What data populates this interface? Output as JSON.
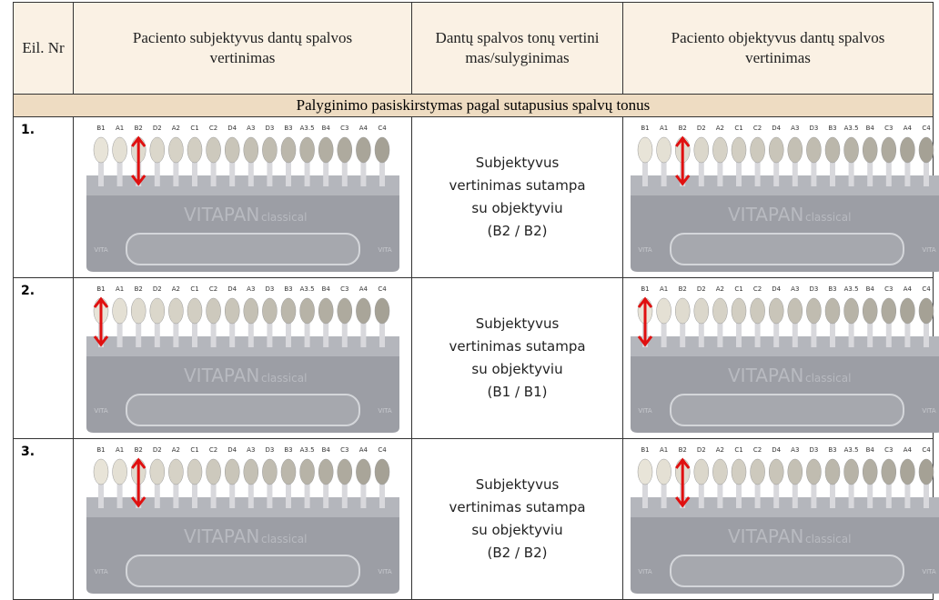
{
  "table": {
    "header": [
      "Eil. Nr",
      "Paciento subjektyvus dantų spalvos vertinimas",
      "Dantų spalvos tonų vertinimas/sulyginimas",
      "Paciento objektyvus dantų spalvos vertinimas"
    ],
    "section": "Palyginimo pasiskirstymas pagal sutapusius spalvų tonus",
    "rows": [
      {
        "nr": "1.",
        "result": [
          "Subjektyvus",
          "vertinimas sutampa",
          "su objektyviu",
          "(B2 / B2)"
        ]
      },
      {
        "nr": "2.",
        "result": [
          "Subjektyvus",
          "vertinimas sutampa",
          "su objektyviu",
          "(B1 / B1)"
        ]
      },
      {
        "nr": "3.",
        "result": [
          "Subjektyvus",
          "vertinimas sutampa",
          "su objektyviu",
          "(B2 / B2)"
        ]
      }
    ]
  },
  "shade_guide": {
    "shades": [
      "B1",
      "A1",
      "B2",
      "D2",
      "A2",
      "C1",
      "C2",
      "D4",
      "A3",
      "D3",
      "B3",
      "A3.5",
      "B4",
      "C3",
      "A4",
      "C4"
    ],
    "brand": "VITAPAN",
    "model": "classical",
    "logo": "VITA"
  }
}
